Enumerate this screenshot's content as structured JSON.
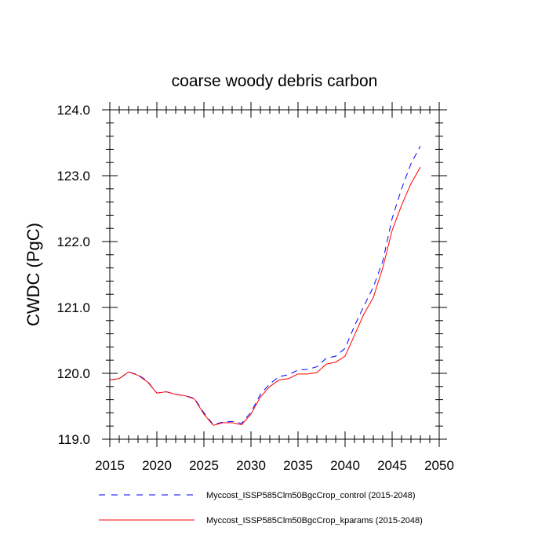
{
  "chart_data": {
    "type": "line",
    "title": "coarse woody debris carbon",
    "xlabel": "",
    "ylabel": "CWDC  (PgC)",
    "xlim": [
      2015,
      2050
    ],
    "ylim": [
      119.0,
      124.0
    ],
    "x_ticks": [
      2015,
      2020,
      2025,
      2030,
      2035,
      2040,
      2045,
      2050
    ],
    "x_tick_labels": [
      "2015",
      "2020",
      "2025",
      "2030",
      "2035",
      "2040",
      "2045",
      "2050"
    ],
    "y_ticks": [
      119.0,
      120.0,
      121.0,
      122.0,
      123.0,
      124.0
    ],
    "y_tick_labels": [
      "119.0",
      "120.0",
      "121.0",
      "122.0",
      "123.0",
      "124.0"
    ],
    "grid": false,
    "legend_position": "bottom",
    "x": [
      2015,
      2016,
      2017,
      2018,
      2019,
      2020,
      2021,
      2022,
      2023,
      2024,
      2025,
      2026,
      2027,
      2028,
      2029,
      2030,
      2031,
      2032,
      2033,
      2034,
      2035,
      2036,
      2037,
      2038,
      2039,
      2040,
      2041,
      2042,
      2043,
      2044,
      2045,
      2046,
      2047,
      2048
    ],
    "series": [
      {
        "name": "Myccost_ISSP585Clm50BgcCrop_control (2015-2048)",
        "color": "#0000ff",
        "dash": "dashed",
        "values": [
          119.9,
          119.92,
          120.02,
          119.98,
          119.88,
          119.7,
          119.72,
          119.68,
          119.66,
          119.62,
          119.4,
          119.22,
          119.26,
          119.27,
          119.24,
          119.41,
          119.68,
          119.84,
          119.95,
          119.98,
          120.05,
          120.06,
          120.1,
          120.23,
          120.26,
          120.38,
          120.72,
          121.02,
          121.31,
          121.7,
          122.35,
          122.8,
          123.18,
          123.45
        ]
      },
      {
        "name": "Myccost_ISSP585Clm50BgcCrop_kparams (2015-2048)",
        "color": "#ff0000",
        "dash": "solid",
        "values": [
          119.9,
          119.92,
          120.02,
          119.97,
          119.87,
          119.7,
          119.72,
          119.68,
          119.66,
          119.61,
          119.38,
          119.21,
          119.25,
          119.25,
          119.22,
          119.38,
          119.64,
          119.8,
          119.9,
          119.92,
          119.99,
          119.99,
          120.01,
          120.14,
          120.17,
          120.26,
          120.58,
          120.9,
          121.15,
          121.6,
          122.17,
          122.55,
          122.88,
          123.13
        ]
      }
    ]
  }
}
